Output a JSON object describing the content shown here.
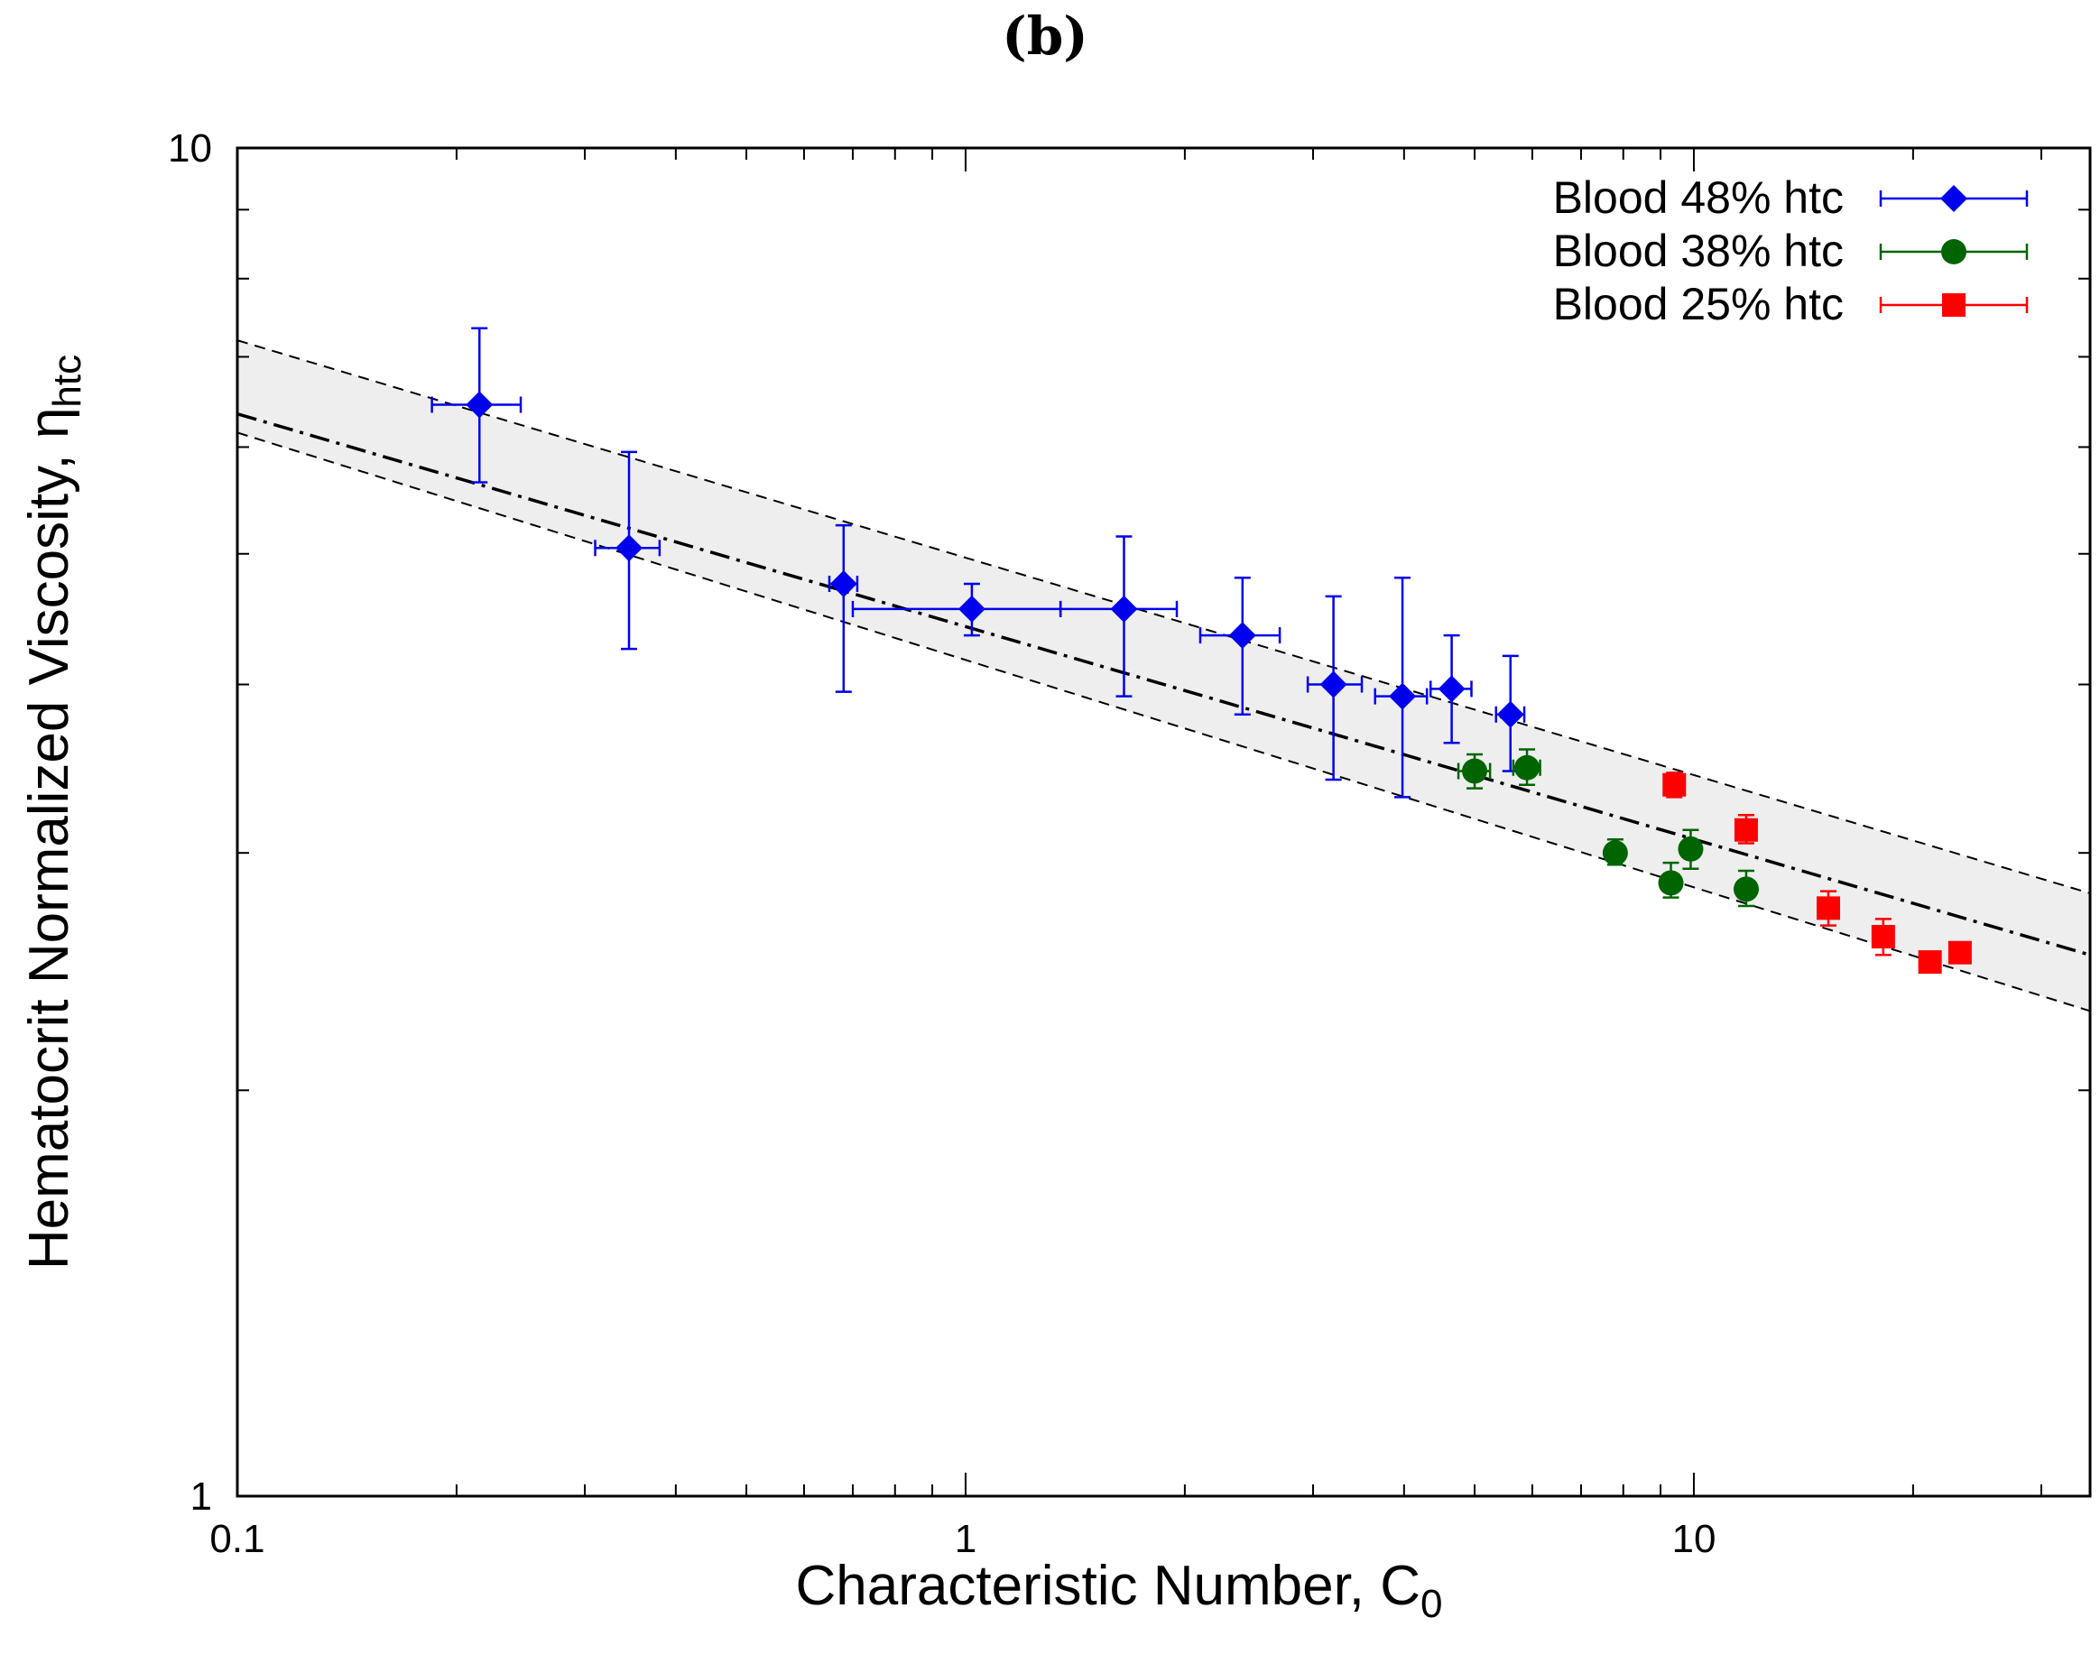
{
  "chart_data": {
    "type": "scatter",
    "title": "(b)",
    "xlabel": {
      "main": "Characteristic Number, C",
      "sub": "0"
    },
    "ylabel": {
      "main": "Hematocrit Normalized Viscosity, η",
      "sub": "htc"
    },
    "xscale": "log",
    "yscale": "log",
    "xlim": [
      0.1,
      35
    ],
    "ylim": [
      1,
      10
    ],
    "xticks": [
      {
        "value": 0.1,
        "label": "0.1"
      },
      {
        "value": 1,
        "label": "1"
      },
      {
        "value": 10,
        "label": "10"
      }
    ],
    "yticks": [
      {
        "value": 1,
        "label": "1"
      },
      {
        "value": 10,
        "label": "10"
      }
    ],
    "legend_position": "top-right",
    "fit": {
      "center": {
        "style": "dash-dot",
        "points": [
          [
            0.1,
            6.35
          ],
          [
            35,
            2.52
          ]
        ]
      },
      "upper": {
        "style": "dashed",
        "points": [
          [
            0.1,
            7.2
          ],
          [
            35,
            2.8
          ]
        ]
      },
      "lower": {
        "style": "dashed",
        "points": [
          [
            0.1,
            6.15
          ],
          [
            35,
            2.29
          ]
        ]
      },
      "band_color": "#eeeeee"
    },
    "series": [
      {
        "name": "Blood 48% htc",
        "color": "#0000ee",
        "marker": "diamond",
        "points": [
          {
            "x": 0.215,
            "y": 6.45,
            "xerr": [
              0.185,
              0.245
            ],
            "yerr": [
              5.65,
              7.35
            ]
          },
          {
            "x": 0.345,
            "y": 5.05,
            "xerr": [
              0.31,
              0.38
            ],
            "yerr": [
              4.25,
              5.95
            ]
          },
          {
            "x": 0.68,
            "y": 4.75,
            "xerr": [
              0.65,
              0.71
            ],
            "yerr": [
              3.95,
              5.25
            ]
          },
          {
            "x": 1.02,
            "y": 4.55,
            "xerr": [
              0.7,
              1.35
            ],
            "yerr": [
              4.35,
              4.75
            ]
          },
          {
            "x": 1.65,
            "y": 4.55,
            "xerr": [
              1.35,
              1.95
            ],
            "yerr": [
              3.92,
              5.15
            ]
          },
          {
            "x": 2.4,
            "y": 4.35,
            "xerr": [
              2.1,
              2.7
            ],
            "yerr": [
              3.8,
              4.8
            ]
          },
          {
            "x": 3.2,
            "y": 4.0,
            "xerr": [
              2.95,
              3.5
            ],
            "yerr": [
              3.4,
              4.65
            ]
          },
          {
            "x": 3.98,
            "y": 3.92,
            "xerr": [
              3.65,
              4.3
            ],
            "yerr": [
              3.3,
              4.8
            ]
          },
          {
            "x": 4.65,
            "y": 3.97,
            "xerr": [
              4.35,
              4.95
            ],
            "yerr": [
              3.62,
              4.35
            ]
          },
          {
            "x": 5.6,
            "y": 3.8,
            "xerr": [
              5.35,
              5.85
            ],
            "yerr": [
              3.45,
              4.2
            ]
          }
        ]
      },
      {
        "name": "Blood 38% htc",
        "color": "#006400",
        "marker": "circle",
        "points": [
          {
            "x": 5.0,
            "y": 3.45,
            "xerr": [
              4.75,
              5.25
            ],
            "yerr": [
              3.35,
              3.55
            ]
          },
          {
            "x": 5.9,
            "y": 3.47,
            "xerr": [
              5.65,
              6.15
            ],
            "yerr": [
              3.37,
              3.58
            ]
          },
          {
            "x": 7.8,
            "y": 3.0,
            "xerr": [
              7.65,
              7.95
            ],
            "yerr": [
              2.94,
              3.07
            ]
          },
          {
            "x": 9.3,
            "y": 2.85,
            "xerr": [
              9.1,
              9.5
            ],
            "yerr": [
              2.78,
              2.95
            ]
          },
          {
            "x": 9.9,
            "y": 3.02,
            "xerr": [
              9.7,
              10.1
            ],
            "yerr": [
              2.92,
              3.12
            ]
          },
          {
            "x": 11.8,
            "y": 2.82,
            "xerr": [
              11.6,
              12.0
            ],
            "yerr": [
              2.74,
              2.91
            ]
          }
        ]
      },
      {
        "name": "Blood 25% htc",
        "color": "#ff0000",
        "marker": "square",
        "points": [
          {
            "x": 9.4,
            "y": 3.37,
            "xerr": [
              9.25,
              9.55
            ],
            "yerr": [
              3.3,
              3.44
            ]
          },
          {
            "x": 11.8,
            "y": 3.12,
            "xerr": [
              11.6,
              12.0
            ],
            "yerr": [
              3.05,
              3.2
            ]
          },
          {
            "x": 15.3,
            "y": 2.73,
            "xerr": [
              15.0,
              15.6
            ],
            "yerr": [
              2.65,
              2.81
            ]
          },
          {
            "x": 18.2,
            "y": 2.6,
            "xerr": [
              17.8,
              18.6
            ],
            "yerr": [
              2.52,
              2.68
            ]
          },
          {
            "x": 21.1,
            "y": 2.49,
            "xerr": [
              20.8,
              21.4
            ],
            "yerr": [
              2.46,
              2.53
            ]
          },
          {
            "x": 23.2,
            "y": 2.53,
            "xerr": [
              22.9,
              23.5
            ],
            "yerr": [
              2.5,
              2.57
            ]
          }
        ]
      }
    ]
  }
}
